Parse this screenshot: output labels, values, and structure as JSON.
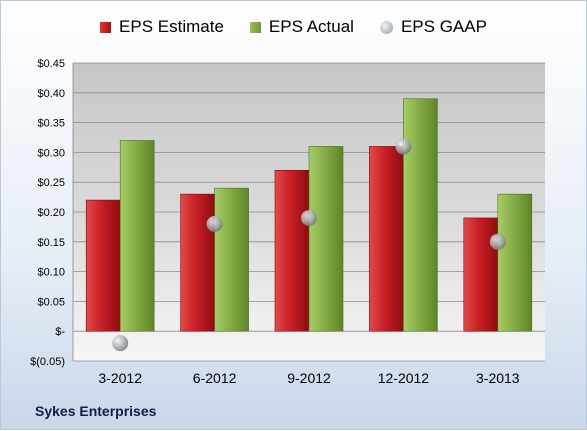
{
  "footer": "Sykes Enterprises",
  "colors": {
    "estimate": "#c0202a",
    "actual": "#86ad46",
    "gaap": "#a9adb3"
  },
  "chart_data": {
    "type": "bar",
    "categories": [
      "3-2012",
      "6-2012",
      "9-2012",
      "12-2012",
      "3-2013"
    ],
    "series": [
      {
        "name": "EPS Estimate",
        "type": "bar",
        "values": [
          0.22,
          0.23,
          0.27,
          0.31,
          0.19
        ]
      },
      {
        "name": "EPS Actual",
        "type": "bar",
        "values": [
          0.32,
          0.24,
          0.31,
          0.39,
          0.23
        ]
      },
      {
        "name": "EPS GAAP",
        "type": "scatter",
        "values": [
          -0.02,
          0.18,
          0.19,
          0.31,
          0.15
        ]
      }
    ],
    "ylim": [
      -0.05,
      0.45
    ],
    "yticks": [
      0.45,
      0.4,
      0.35,
      0.3,
      0.25,
      0.2,
      0.15,
      0.1,
      0.05,
      0.0,
      -0.05
    ],
    "ytick_labels": [
      "$0.45",
      "$0.40",
      "$0.35",
      "$0.30",
      "$0.25",
      "$0.20",
      "$0.15",
      "$0.10",
      "$0.05",
      "$-",
      "$(0.05)"
    ],
    "grid": true,
    "legend": "top"
  }
}
